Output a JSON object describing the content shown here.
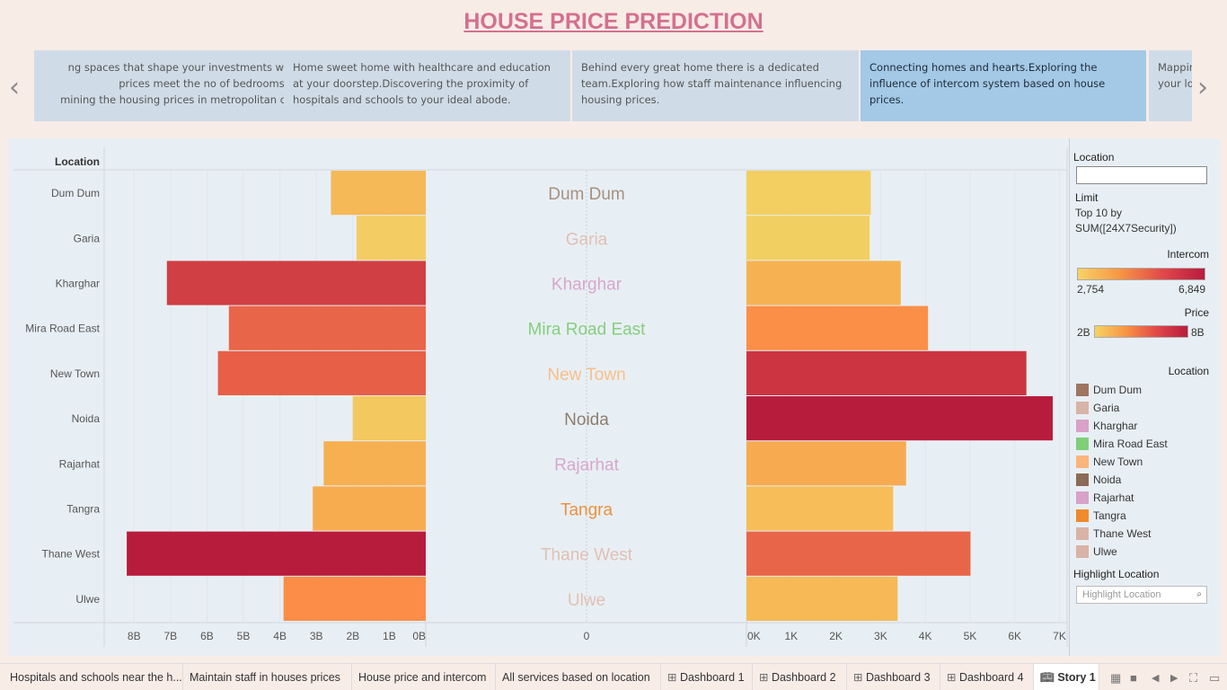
{
  "title": "HOUSE PRICE PREDICTION",
  "story_points": [
    "ng spaces that shape your investments where prices meet the no of bedrooms and mining the housing prices in metropolitan cities",
    " Home sweet home with healthcare and education at your doorstep.Discovering the proximity of hospitals and schools to your ideal abode.",
    "Behind every great home there is a dedicated team.Exploring how staff maintenance influencing housing prices.",
    "Connecting homes and hearts.Exploring the influence of intercom system based on house prices.",
    "Mappin your lo"
  ],
  "story_points_lines": [
    [
      "ng spaces that shape your investments where",
      "prices meet the no of bedrooms and",
      "mining the housing prices in metropolitan cities"
    ],
    [
      " Home sweet home with healthcare and education",
      "at your doorstep.Discovering the proximity of",
      "hospitals and schools to your ideal abode."
    ],
    [
      "Behind every great home there is a dedicated",
      "team.Exploring how staff maintenance influencing",
      "housing prices."
    ],
    [
      "Connecting homes and hearts.Exploring the",
      "influence of intercom system based on house prices."
    ],
    [
      "Mappin",
      "your lo"
    ]
  ],
  "nav": {
    "prev": "‹",
    "next": "›"
  },
  "chart_data": {
    "type": "bar",
    "row_header": "Location",
    "categories": [
      "Dum Dum",
      "Garia",
      "Kharghar",
      "Mira Road East",
      "New Town",
      "Noida",
      "Rajarhat",
      "Tangra",
      "Thane West",
      "Ulwe"
    ],
    "series": [
      {
        "name": "Price",
        "values": [
          2.6,
          1.9,
          7.1,
          5.4,
          5.7,
          2.0,
          2.8,
          3.1,
          8.2,
          3.9
        ],
        "unit": "B",
        "xlim": [
          8.4,
          0
        ],
        "ticks": [
          "8B",
          "7B",
          "6B",
          "5B",
          "4B",
          "3B",
          "2B",
          "1B",
          "0B"
        ]
      },
      {
        "name": "Intercom",
        "values": [
          2780,
          2754,
          3450,
          4060,
          6260,
          6849,
          3570,
          3280,
          5010,
          3380
        ],
        "xlim": [
          0,
          7000
        ],
        "ticks": [
          "0K",
          "1K",
          "2K",
          "3K",
          "4K",
          "5K",
          "6K",
          "7K"
        ]
      }
    ],
    "center_axis_label": "0",
    "price_bar_colors": [
      "#f5b957",
      "#f3cd63",
      "#d03f43",
      "#e9654a",
      "#e75f47",
      "#f3c85e",
      "#f6b052",
      "#f7ac50",
      "#b81c3d",
      "#fb8d48"
    ],
    "intercom_bar_colors": [
      "#f3cf61",
      "#f2cf61",
      "#f6b252",
      "#fb8f47",
      "#cc3441",
      "#b81c3d",
      "#f7aa50",
      "#f6bd58",
      "#e86549",
      "#f6b955"
    ],
    "label_colors": [
      "#a6907e",
      "#e1c0b3",
      "#d7a7cb",
      "#84cf7e",
      "#f8bf88",
      "#8f7d6d",
      "#d7a7cb",
      "#ec903d",
      "#e1c0b3",
      "#e1c0b3"
    ]
  },
  "legend": {
    "location_label": "Location",
    "limit_label": "Limit",
    "limit_text_1": "Top 10 by",
    "limit_text_2": "SUM([24X7Security])",
    "intercom_label": "Intercom",
    "intercom_min": "2,754",
    "intercom_max": "6,849",
    "price_label": "Price",
    "price_min": "2B",
    "price_max": "8B",
    "location_legend_label": "Location",
    "items": [
      {
        "name": "Dum Dum",
        "color": "#9e7560"
      },
      {
        "name": "Garia",
        "color": "#d9b3a6"
      },
      {
        "name": "Kharghar",
        "color": "#d8a2c9"
      },
      {
        "name": "Mira Road East",
        "color": "#7fcf7b"
      },
      {
        "name": "New Town",
        "color": "#fbb57a"
      },
      {
        "name": "Noida",
        "color": "#8c6a56"
      },
      {
        "name": "Rajarhat",
        "color": "#d8a2c9"
      },
      {
        "name": "Tangra",
        "color": "#f08a2c"
      },
      {
        "name": "Thane West",
        "color": "#d9b3a6"
      },
      {
        "name": "Ulwe",
        "color": "#d9b3a6"
      }
    ],
    "highlight_label": "Highlight Location",
    "highlight_placeholder": "Highlight Location"
  },
  "tabs": [
    {
      "label": "Hospitals and schools near the h..."
    },
    {
      "label": "Maintain staff in houses prices"
    },
    {
      "label": "House price and intercom"
    },
    {
      "label": "All services based on location"
    },
    {
      "label": "Dashboard 1",
      "icon": "grid-icon"
    },
    {
      "label": "Dashboard 2",
      "icon": "grid-icon"
    },
    {
      "label": "Dashboard 3",
      "icon": "grid-icon"
    },
    {
      "label": "Dashboard 4",
      "icon": "grid-icon"
    },
    {
      "label": "Story 1",
      "icon": "book-icon",
      "active": true
    }
  ],
  "tab_controls": [
    "grid-view-icon",
    "fill-view-icon",
    "prev-sheet-icon",
    "next-sheet-icon",
    "fit-icon",
    "present-icon"
  ]
}
